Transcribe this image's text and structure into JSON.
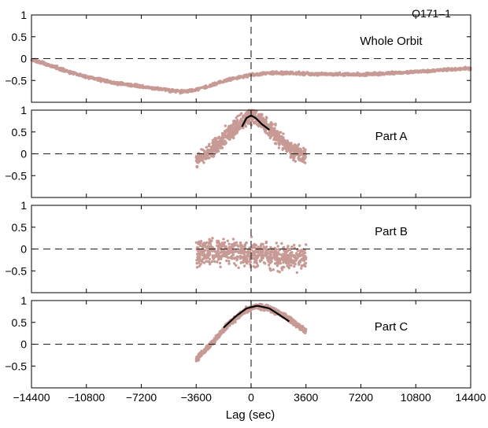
{
  "chart_data": {
    "type": "scatter",
    "figure_label": "O171–1",
    "xlabel": "Lag (sec)",
    "xlim": [
      -14400,
      14400
    ],
    "x_ticks": [
      -14400,
      -10800,
      -7200,
      -3600,
      0,
      3600,
      7200,
      10800,
      14400
    ],
    "x_tick_labels": [
      "−14400",
      "−10800",
      "−7200",
      "−3600",
      "0",
      "3600",
      "7200",
      "10800",
      "14400"
    ],
    "ylim": [
      -1,
      1
    ],
    "y_ticks": [
      1,
      0.5,
      0,
      -0.5
    ],
    "y_tick_labels": [
      "1",
      "0.5",
      "0",
      "−0.5"
    ],
    "zero_line_h": 0,
    "zero_line_v": 0,
    "point_color": "#c79a95",
    "fit_color": "#000000",
    "panels": [
      {
        "label": "Whole Orbit",
        "cloud": {
          "x_range": [
            -14400,
            14400
          ],
          "spread": 0.03,
          "count": 1700,
          "curve": [
            [
              -14400,
              -0.02
            ],
            [
              -13000,
              -0.18
            ],
            [
              -11000,
              -0.4
            ],
            [
              -9000,
              -0.55
            ],
            [
              -7200,
              -0.64
            ],
            [
              -5500,
              -0.72
            ],
            [
              -4500,
              -0.76
            ],
            [
              -3600,
              -0.72
            ],
            [
              -2500,
              -0.6
            ],
            [
              -1500,
              -0.48
            ],
            [
              0,
              -0.37
            ],
            [
              1500,
              -0.32
            ],
            [
              3600,
              -0.35
            ],
            [
              7200,
              -0.37
            ],
            [
              10800,
              -0.3
            ],
            [
              13000,
              -0.25
            ],
            [
              14400,
              -0.22
            ]
          ]
        },
        "fit": null
      },
      {
        "label": "Part A",
        "cloud": {
          "x_range": [
            -3600,
            3600
          ],
          "spread": 0.18,
          "count": 900,
          "curve": [
            [
              -3600,
              -0.15
            ],
            [
              -2500,
              0.1
            ],
            [
              -1800,
              0.35
            ],
            [
              -1000,
              0.6
            ],
            [
              -300,
              0.85
            ],
            [
              0,
              0.9
            ],
            [
              400,
              0.85
            ],
            [
              1000,
              0.65
            ],
            [
              1800,
              0.35
            ],
            [
              2600,
              0.1
            ],
            [
              3600,
              -0.05
            ]
          ]
        },
        "fit": {
          "x_range": [
            -600,
            1200
          ],
          "curve": [
            [
              -600,
              0.62
            ],
            [
              -300,
              0.82
            ],
            [
              0,
              0.88
            ],
            [
              300,
              0.82
            ],
            [
              700,
              0.68
            ],
            [
              1200,
              0.55
            ]
          ]
        }
      },
      {
        "label": "Part B",
        "cloud": {
          "x_range": [
            -3600,
            3600
          ],
          "spread": 0.28,
          "count": 700,
          "curve": [
            [
              -3600,
              -0.1
            ],
            [
              -1800,
              -0.05
            ],
            [
              0,
              -0.1
            ],
            [
              1800,
              -0.2
            ],
            [
              3600,
              -0.2
            ]
          ]
        },
        "fit": null
      },
      {
        "label": "Part C",
        "cloud": {
          "x_range": [
            -3600,
            3600
          ],
          "spread": 0.06,
          "count": 900,
          "curve": [
            [
              -3600,
              -0.35
            ],
            [
              -2500,
              0.05
            ],
            [
              -1500,
              0.45
            ],
            [
              -500,
              0.75
            ],
            [
              400,
              0.88
            ],
            [
              1200,
              0.82
            ],
            [
              2200,
              0.65
            ],
            [
              3000,
              0.45
            ],
            [
              3600,
              0.3
            ]
          ]
        },
        "fit": {
          "x_range": [
            -1800,
            2500
          ],
          "curve": [
            [
              -1800,
              0.38
            ],
            [
              -1000,
              0.64
            ],
            [
              -300,
              0.82
            ],
            [
              400,
              0.88
            ],
            [
              1200,
              0.82
            ],
            [
              2000,
              0.64
            ],
            [
              2500,
              0.52
            ]
          ]
        }
      }
    ]
  }
}
